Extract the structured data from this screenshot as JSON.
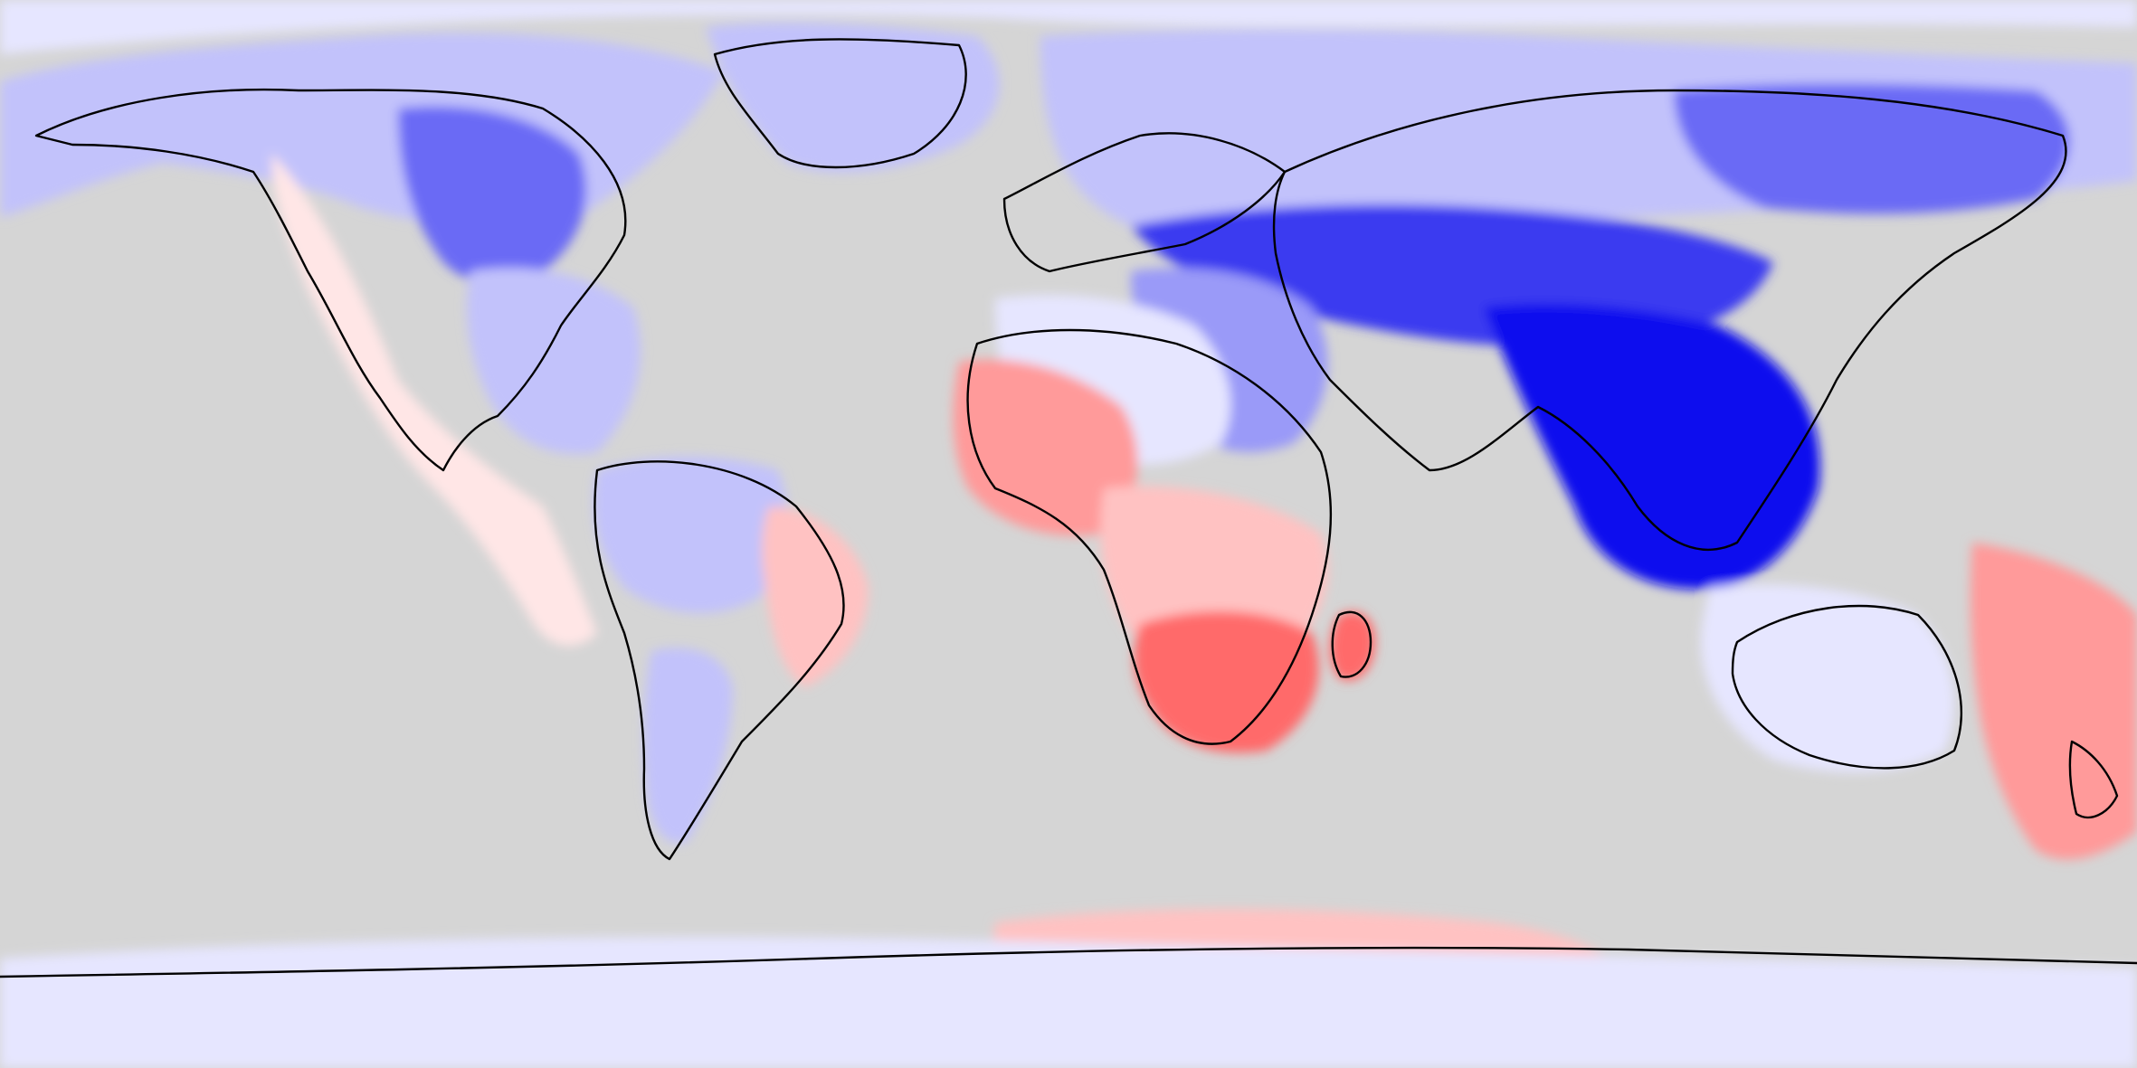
{
  "map": {
    "projection": "equirectangular",
    "extent": {
      "lon": [
        -180,
        180
      ],
      "lat": [
        -90,
        90
      ]
    },
    "background_color": "#d5d5d5",
    "coastline_color": "#000000",
    "color_scale": {
      "type": "diverging",
      "levels": [
        "#0a0aee",
        "#3a3af0",
        "#6a6af5",
        "#9a9af8",
        "#c2c2fb",
        "#e6e6ff",
        "#ffe6e6",
        "#ffc2c2",
        "#ff9a9a",
        "#ff6a6a"
      ]
    },
    "regions": [
      {
        "name": "arctic-ocean-band",
        "tone": 5
      },
      {
        "name": "north-america-north",
        "tone": 4
      },
      {
        "name": "canada-interior",
        "tone": 2
      },
      {
        "name": "usa-east",
        "tone": 4
      },
      {
        "name": "west-coast-americas",
        "tone": 6
      },
      {
        "name": "greenland",
        "tone": 4
      },
      {
        "name": "europe-russia-north",
        "tone": 4
      },
      {
        "name": "central-asia",
        "tone": 1
      },
      {
        "name": "south-east-asia",
        "tone": 0
      },
      {
        "name": "siberia-east",
        "tone": 2
      },
      {
        "name": "middle-east",
        "tone": 3
      },
      {
        "name": "sahara",
        "tone": 5
      },
      {
        "name": "west-africa",
        "tone": 8
      },
      {
        "name": "central-africa",
        "tone": 7
      },
      {
        "name": "southern-africa",
        "tone": 9
      },
      {
        "name": "madagascar",
        "tone": 9
      },
      {
        "name": "amazon",
        "tone": 4
      },
      {
        "name": "brazil-east",
        "tone": 7
      },
      {
        "name": "patagonia",
        "tone": 4
      },
      {
        "name": "australia",
        "tone": 5
      },
      {
        "name": "new-zealand-pacific",
        "tone": 8
      },
      {
        "name": "antarctica-east",
        "tone": 7
      },
      {
        "name": "antarctica-band",
        "tone": 5
      }
    ]
  }
}
